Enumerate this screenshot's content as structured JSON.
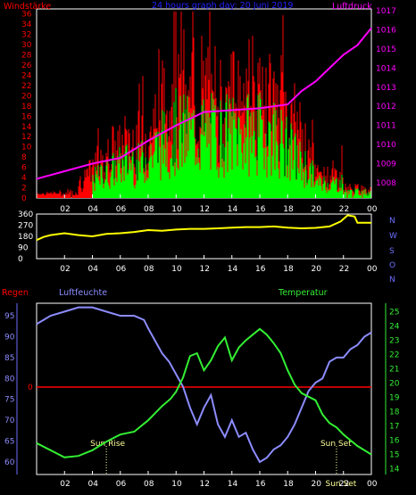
{
  "colors": {
    "red": "#ff0000",
    "green": "#00ff00",
    "magenta": "#ff00ff",
    "blue_title": "#2222ff",
    "yellow": "#ffff00",
    "axis_blue": "#6e6eff",
    "humidity": "#8c8cff",
    "temp": "#33ee33",
    "white": "#ffffff"
  },
  "chart_data": [
    {
      "type": "bar",
      "title": "24 hours graph day: 20 Juni 2019",
      "left_label": "Windstärke",
      "right_label": "Luftdruck",
      "xticks": [
        "02",
        "04",
        "06",
        "08",
        "10",
        "12",
        "14",
        "16",
        "18",
        "20",
        "22",
        "00"
      ],
      "y_left": {
        "ticks": [
          "0",
          "2",
          "4",
          "6",
          "8",
          "10",
          "12",
          "14",
          "16",
          "18",
          "20",
          "22",
          "24",
          "26",
          "28",
          "30",
          "32",
          "34",
          "36"
        ],
        "ylim": [
          0,
          37
        ]
      },
      "y_right": {
        "ticks": [
          "1008",
          "1009",
          "1010",
          "1011",
          "1012",
          "1013",
          "1014",
          "1015",
          "1016",
          "1017"
        ],
        "ylim": [
          1007.2,
          1017.1
        ]
      },
      "series": [
        {
          "kind": "gust",
          "color": "red"
        },
        {
          "kind": "wind",
          "color": "green"
        },
        {
          "kind": "pressure",
          "color": "magenta",
          "points": [
            [
              0,
              1008.2
            ],
            [
              2,
              1008.6
            ],
            [
              4,
              1009.0
            ],
            [
              6,
              1009.3
            ],
            [
              8,
              1010.2
            ],
            [
              10,
              1011.0
            ],
            [
              12,
              1011.7
            ],
            [
              14,
              1011.8
            ],
            [
              16,
              1011.9
            ],
            [
              18,
              1012.1
            ],
            [
              19,
              1012.8
            ],
            [
              20,
              1013.3
            ],
            [
              21,
              1014.0
            ],
            [
              22,
              1014.7
            ],
            [
              23,
              1015.2
            ],
            [
              24,
              1016.1
            ]
          ]
        }
      ]
    },
    {
      "type": "line",
      "right_labels": [
        "N",
        "W",
        "S",
        "O",
        "N"
      ],
      "y_ticks": [
        "0",
        "90",
        "180",
        "270",
        "360"
      ],
      "ylim": [
        0,
        360
      ],
      "xticks": [
        "02",
        "04",
        "06",
        "08",
        "10",
        "12",
        "14",
        "16",
        "18",
        "20",
        "22",
        "00"
      ],
      "series": [
        {
          "kind": "wind-direction",
          "color": "yellow",
          "points": [
            [
              0,
              150
            ],
            [
              0.5,
              175
            ],
            [
              1,
              190
            ],
            [
              2,
              205
            ],
            [
              3,
              190
            ],
            [
              4,
              180
            ],
            [
              5,
              200
            ],
            [
              6,
              205
            ],
            [
              7,
              215
            ],
            [
              8,
              230
            ],
            [
              9,
              225
            ],
            [
              10,
              235
            ],
            [
              11,
              240
            ],
            [
              12,
              240
            ],
            [
              13,
              245
            ],
            [
              14,
              250
            ],
            [
              15,
              255
            ],
            [
              16,
              255
            ],
            [
              17,
              260
            ],
            [
              18,
              250
            ],
            [
              19,
              245
            ],
            [
              20,
              248
            ],
            [
              21,
              260
            ],
            [
              21.8,
              300
            ],
            [
              22.3,
              350
            ],
            [
              22.8,
              340
            ],
            [
              23,
              290
            ],
            [
              24,
              290
            ]
          ]
        }
      ]
    },
    {
      "type": "line",
      "left_title": "Regen",
      "humidity_label": "Luftfeuchte",
      "temp_label": "Temperatur",
      "rain_value_label": "0",
      "humidity_ticks": [
        "60",
        "65",
        "70",
        "75",
        "80",
        "85",
        "90",
        "95"
      ],
      "temp_ticks": [
        "14",
        "15",
        "16",
        "17",
        "18",
        "19",
        "20",
        "21",
        "22",
        "23",
        "24",
        "25"
      ],
      "xticks": [
        "02",
        "04",
        "06",
        "08",
        "10",
        "12",
        "14",
        "16",
        "18",
        "20",
        "22",
        "00"
      ],
      "annotations": [
        {
          "text": "Sun Rise",
          "x": 5.0
        },
        {
          "text": "Sun Set",
          "x": 21.5
        },
        {
          "text": "Sun Set",
          "x": 21.6
        }
      ],
      "series": [
        {
          "name": "Luftfeuchte",
          "color": "humidity",
          "points": [
            [
              0,
              93
            ],
            [
              1,
              95
            ],
            [
              2,
              96
            ],
            [
              3,
              97
            ],
            [
              4,
              97
            ],
            [
              5,
              96
            ],
            [
              6,
              95
            ],
            [
              7,
              95
            ],
            [
              7.7,
              94
            ],
            [
              8,
              92
            ],
            [
              8.5,
              89
            ],
            [
              9,
              86
            ],
            [
              9.5,
              84
            ],
            [
              10,
              81
            ],
            [
              10.5,
              78
            ],
            [
              11,
              73
            ],
            [
              11.5,
              69
            ],
            [
              12,
              73
            ],
            [
              12.5,
              76
            ],
            [
              13,
              69
            ],
            [
              13.5,
              66
            ],
            [
              14,
              70
            ],
            [
              14.5,
              66
            ],
            [
              15,
              67
            ],
            [
              15.5,
              63
            ],
            [
              16,
              60
            ],
            [
              16.5,
              61
            ],
            [
              17,
              63
            ],
            [
              17.5,
              64
            ],
            [
              18,
              66
            ],
            [
              18.5,
              69
            ],
            [
              19,
              73
            ],
            [
              19.5,
              77
            ],
            [
              20,
              79
            ],
            [
              20.5,
              80
            ],
            [
              21,
              84
            ],
            [
              21.5,
              85
            ],
            [
              22,
              85
            ],
            [
              22.5,
              87
            ],
            [
              23,
              88
            ],
            [
              23.5,
              90
            ],
            [
              24,
              91
            ]
          ]
        },
        {
          "name": "Temperatur",
          "color": "temp",
          "points": [
            [
              0,
              15.8
            ],
            [
              1,
              15.3
            ],
            [
              2,
              14.8
            ],
            [
              3,
              14.9
            ],
            [
              4,
              15.3
            ],
            [
              5,
              15.9
            ],
            [
              6,
              16.4
            ],
            [
              7,
              16.6
            ],
            [
              8,
              17.4
            ],
            [
              9,
              18.4
            ],
            [
              9.6,
              18.9
            ],
            [
              10,
              19.4
            ],
            [
              10.5,
              20.4
            ],
            [
              11,
              21.9
            ],
            [
              11.5,
              22.1
            ],
            [
              12,
              20.9
            ],
            [
              12.5,
              21.6
            ],
            [
              13,
              22.6
            ],
            [
              13.5,
              23.2
            ],
            [
              14,
              21.6
            ],
            [
              14.5,
              22.5
            ],
            [
              15,
              23.0
            ],
            [
              15.5,
              23.4
            ],
            [
              16,
              23.8
            ],
            [
              16.5,
              23.4
            ],
            [
              17,
              22.8
            ],
            [
              17.5,
              22.1
            ],
            [
              18,
              20.9
            ],
            [
              18.5,
              19.9
            ],
            [
              19,
              19.3
            ],
            [
              20,
              18.8
            ],
            [
              20.5,
              17.8
            ],
            [
              21,
              17.2
            ],
            [
              21.5,
              16.9
            ],
            [
              22,
              16.4
            ],
            [
              22.5,
              16.0
            ],
            [
              23,
              15.6
            ],
            [
              24,
              15.0
            ]
          ]
        }
      ]
    }
  ]
}
